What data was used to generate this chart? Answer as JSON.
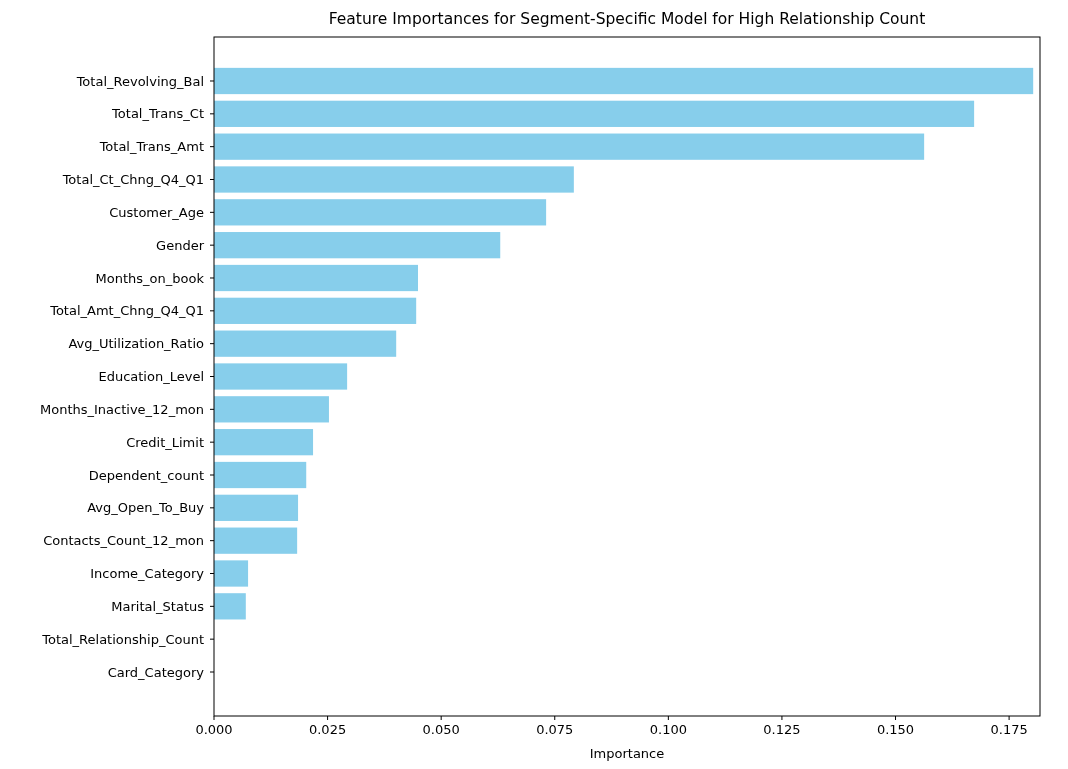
{
  "chart_data": {
    "type": "bar",
    "orientation": "horizontal",
    "title": "Feature Importances for Segment-Specific Model for High Relationship Count",
    "xlabel": "Importance",
    "categories": [
      "Total_Revolving_Bal",
      "Total_Trans_Ct",
      "Total_Trans_Amt",
      "Total_Ct_Chng_Q4_Q1",
      "Customer_Age",
      "Gender",
      "Months_on_book",
      "Total_Amt_Chng_Q4_Q1",
      "Avg_Utilization_Ratio",
      "Education_Level",
      "Months_Inactive_12_mon",
      "Credit_Limit",
      "Dependent_count",
      "Avg_Open_To_Buy",
      "Contacts_Count_12_mon",
      "Income_Category",
      "Marital_Status",
      "Total_Relationship_Count",
      "Card_Category"
    ],
    "values": [
      0.1803,
      0.1673,
      0.1563,
      0.0792,
      0.0731,
      0.063,
      0.0449,
      0.0445,
      0.0401,
      0.0293,
      0.0253,
      0.0218,
      0.0203,
      0.0185,
      0.0183,
      0.0075,
      0.007,
      0,
      0
    ],
    "color": "#87ceeb",
    "xlim": [
      0,
      0.1818
    ],
    "xticks": [
      {
        "value": 0,
        "label": "0.000"
      },
      {
        "value": 0.025,
        "label": "0.025"
      },
      {
        "value": 0.05,
        "label": "0.050"
      },
      {
        "value": 0.075,
        "label": "0.075"
      },
      {
        "value": 0.1,
        "label": "0.100"
      },
      {
        "value": 0.125,
        "label": "0.125"
      },
      {
        "value": 0.15,
        "label": "0.150"
      },
      {
        "value": 0.175,
        "label": "0.175"
      }
    ],
    "grid": false
  }
}
